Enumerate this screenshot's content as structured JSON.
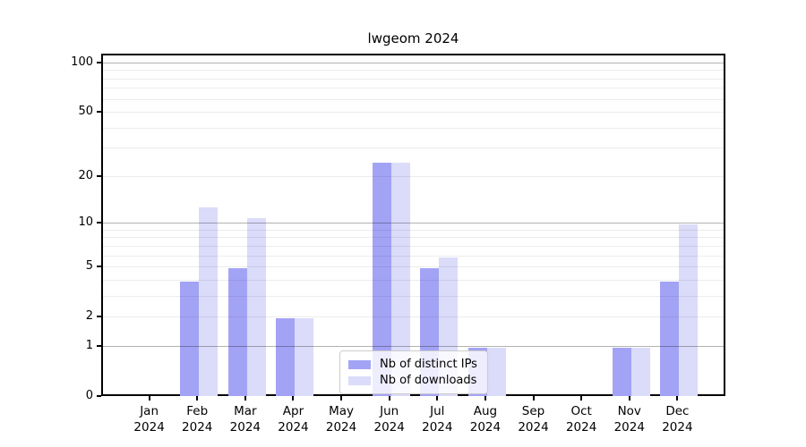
{
  "figure_title": "lwgeom 2024",
  "chart_data": {
    "type": "bar",
    "title": "lwgeom 2024",
    "categories": [
      "Jan",
      "Feb",
      "Mar",
      "Apr",
      "May",
      "Jun",
      "Jul",
      "Aug",
      "Sep",
      "Oct",
      "Nov",
      "Dec"
    ],
    "x_sub_label": "2024",
    "series": [
      {
        "name": "Nb of distinct IPs",
        "color": "#a3a3f5",
        "values": [
          0,
          4,
          5,
          2,
          0,
          25,
          5,
          1,
          0,
          0,
          1,
          4
        ]
      },
      {
        "name": "Nb of downloads",
        "color": "#dbdbfa",
        "values": [
          0,
          13,
          11,
          2,
          0,
          25,
          6,
          1,
          0,
          0,
          1,
          10
        ]
      }
    ],
    "xlabel": "",
    "ylabel": "",
    "y_axis": {
      "scale": "log1p",
      "tick_values": [
        0,
        1,
        2,
        5,
        10,
        20,
        50,
        100
      ],
      "major_grid_values": [
        1,
        10,
        100
      ],
      "minor_grid_values": [
        2,
        3,
        4,
        5,
        6,
        7,
        8,
        9,
        20,
        30,
        40,
        50,
        60,
        70,
        80,
        90
      ],
      "top_tick": 100,
      "ylim": [
        0,
        113
      ]
    },
    "grid": true,
    "legend_position": "bottom-center"
  },
  "colors": {
    "background": "#ffffff",
    "spine": "#000000",
    "major_grid": "#b3b3b3",
    "minor_grid": "#ececec",
    "series_dark": "#a3a3f5",
    "series_light": "#dbdbfa",
    "legend_border": "#cccccc"
  }
}
